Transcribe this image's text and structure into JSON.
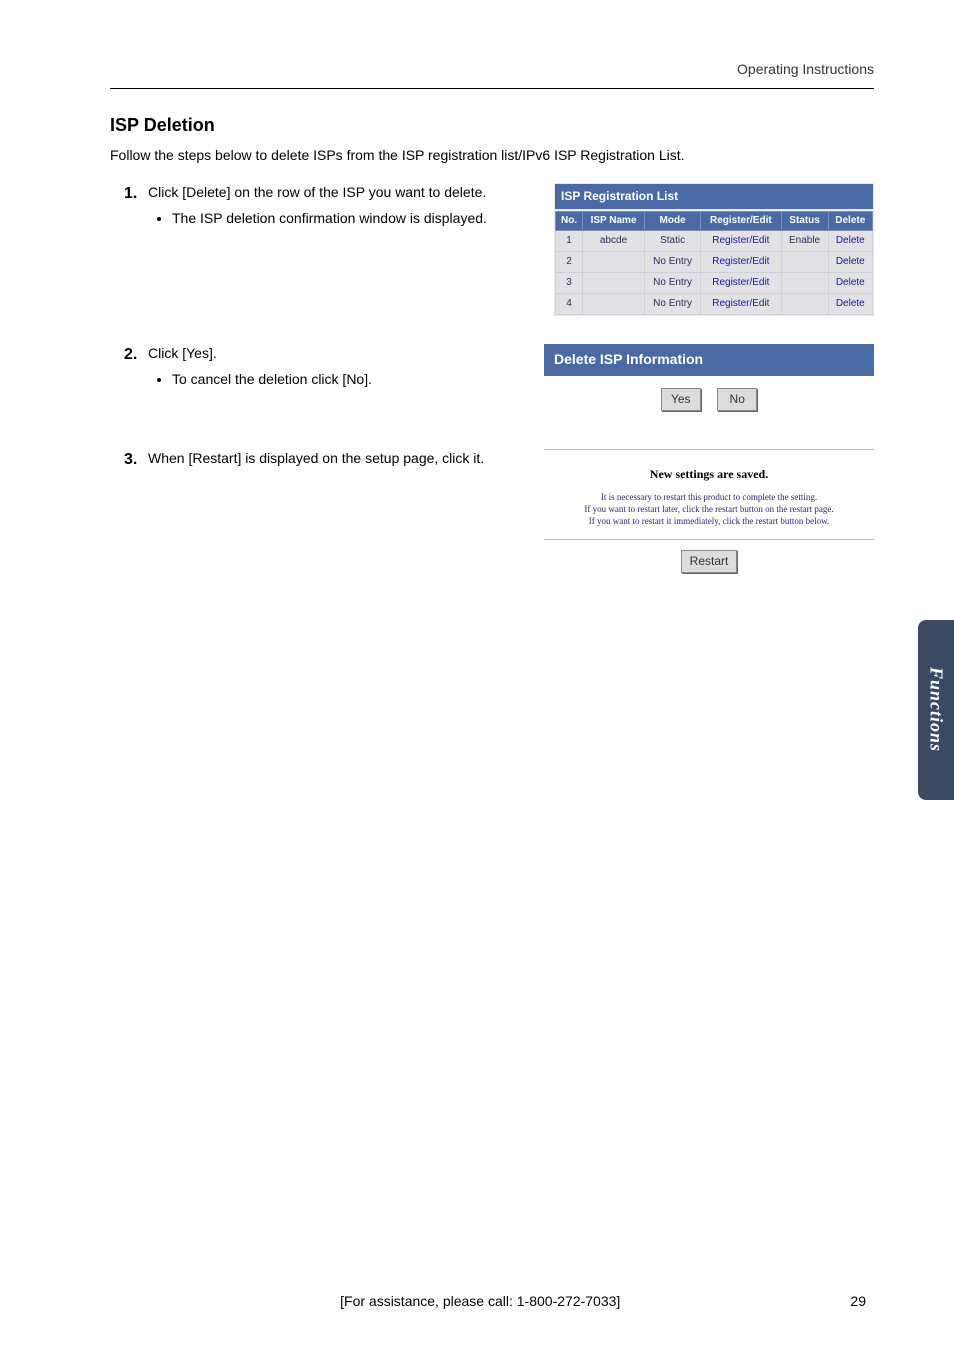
{
  "header_right": "Operating Instructions",
  "section_title": "ISP Deletion",
  "intro_text": "Follow the steps below to delete ISPs from the ISP registration list/IPv6 ISP Registration List.",
  "steps": {
    "s1": {
      "num": "1.",
      "text": "Click [Delete] on the row of the ISP you want to delete.",
      "bullet": "The ISP deletion confirmation window is displayed."
    },
    "s2": {
      "num": "2.",
      "text": "Click [Yes].",
      "bullet": "To cancel the deletion click [No]."
    },
    "s3": {
      "num": "3.",
      "text": "When [Restart] is displayed on the setup page, click it."
    }
  },
  "isp_panel": {
    "title": "ISP Registration List",
    "headers": {
      "no": "No.",
      "name": "ISP Name",
      "mode": "Mode",
      "regedit": "Register/Edit",
      "status": "Status",
      "delete": "Delete"
    },
    "rows": [
      {
        "no": "1",
        "name": "abcde",
        "mode": "Static",
        "regedit": "Register/Edit",
        "status": "Enable",
        "delete": "Delete"
      },
      {
        "no": "2",
        "name": "",
        "mode": "No Entry",
        "regedit": "Register/Edit",
        "status": "",
        "delete": "Delete"
      },
      {
        "no": "3",
        "name": "",
        "mode": "No Entry",
        "regedit": "Register/Edit",
        "status": "",
        "delete": "Delete"
      },
      {
        "no": "4",
        "name": "",
        "mode": "No Entry",
        "regedit": "Register/Edit",
        "status": "",
        "delete": "Delete"
      }
    ]
  },
  "confirm_panel": {
    "title": "Delete ISP Information",
    "yes": "Yes",
    "no": "No"
  },
  "restart_panel": {
    "heading": "New settings are saved.",
    "line1": "It is necessary to restart this product to complete the setting.",
    "line2": "If you want to restart later, click the restart button on the restart page.",
    "line3": "If you want to restart it immediately, click the restart button below.",
    "button": "Restart"
  },
  "side_tab": "Functions",
  "footer": {
    "center": "[For assistance, please call: 1-800-272-7033]",
    "page": "29"
  },
  "colors": {
    "panel_header_bg": "#4a6aa5",
    "side_tab_bg": "#3b4a63"
  }
}
